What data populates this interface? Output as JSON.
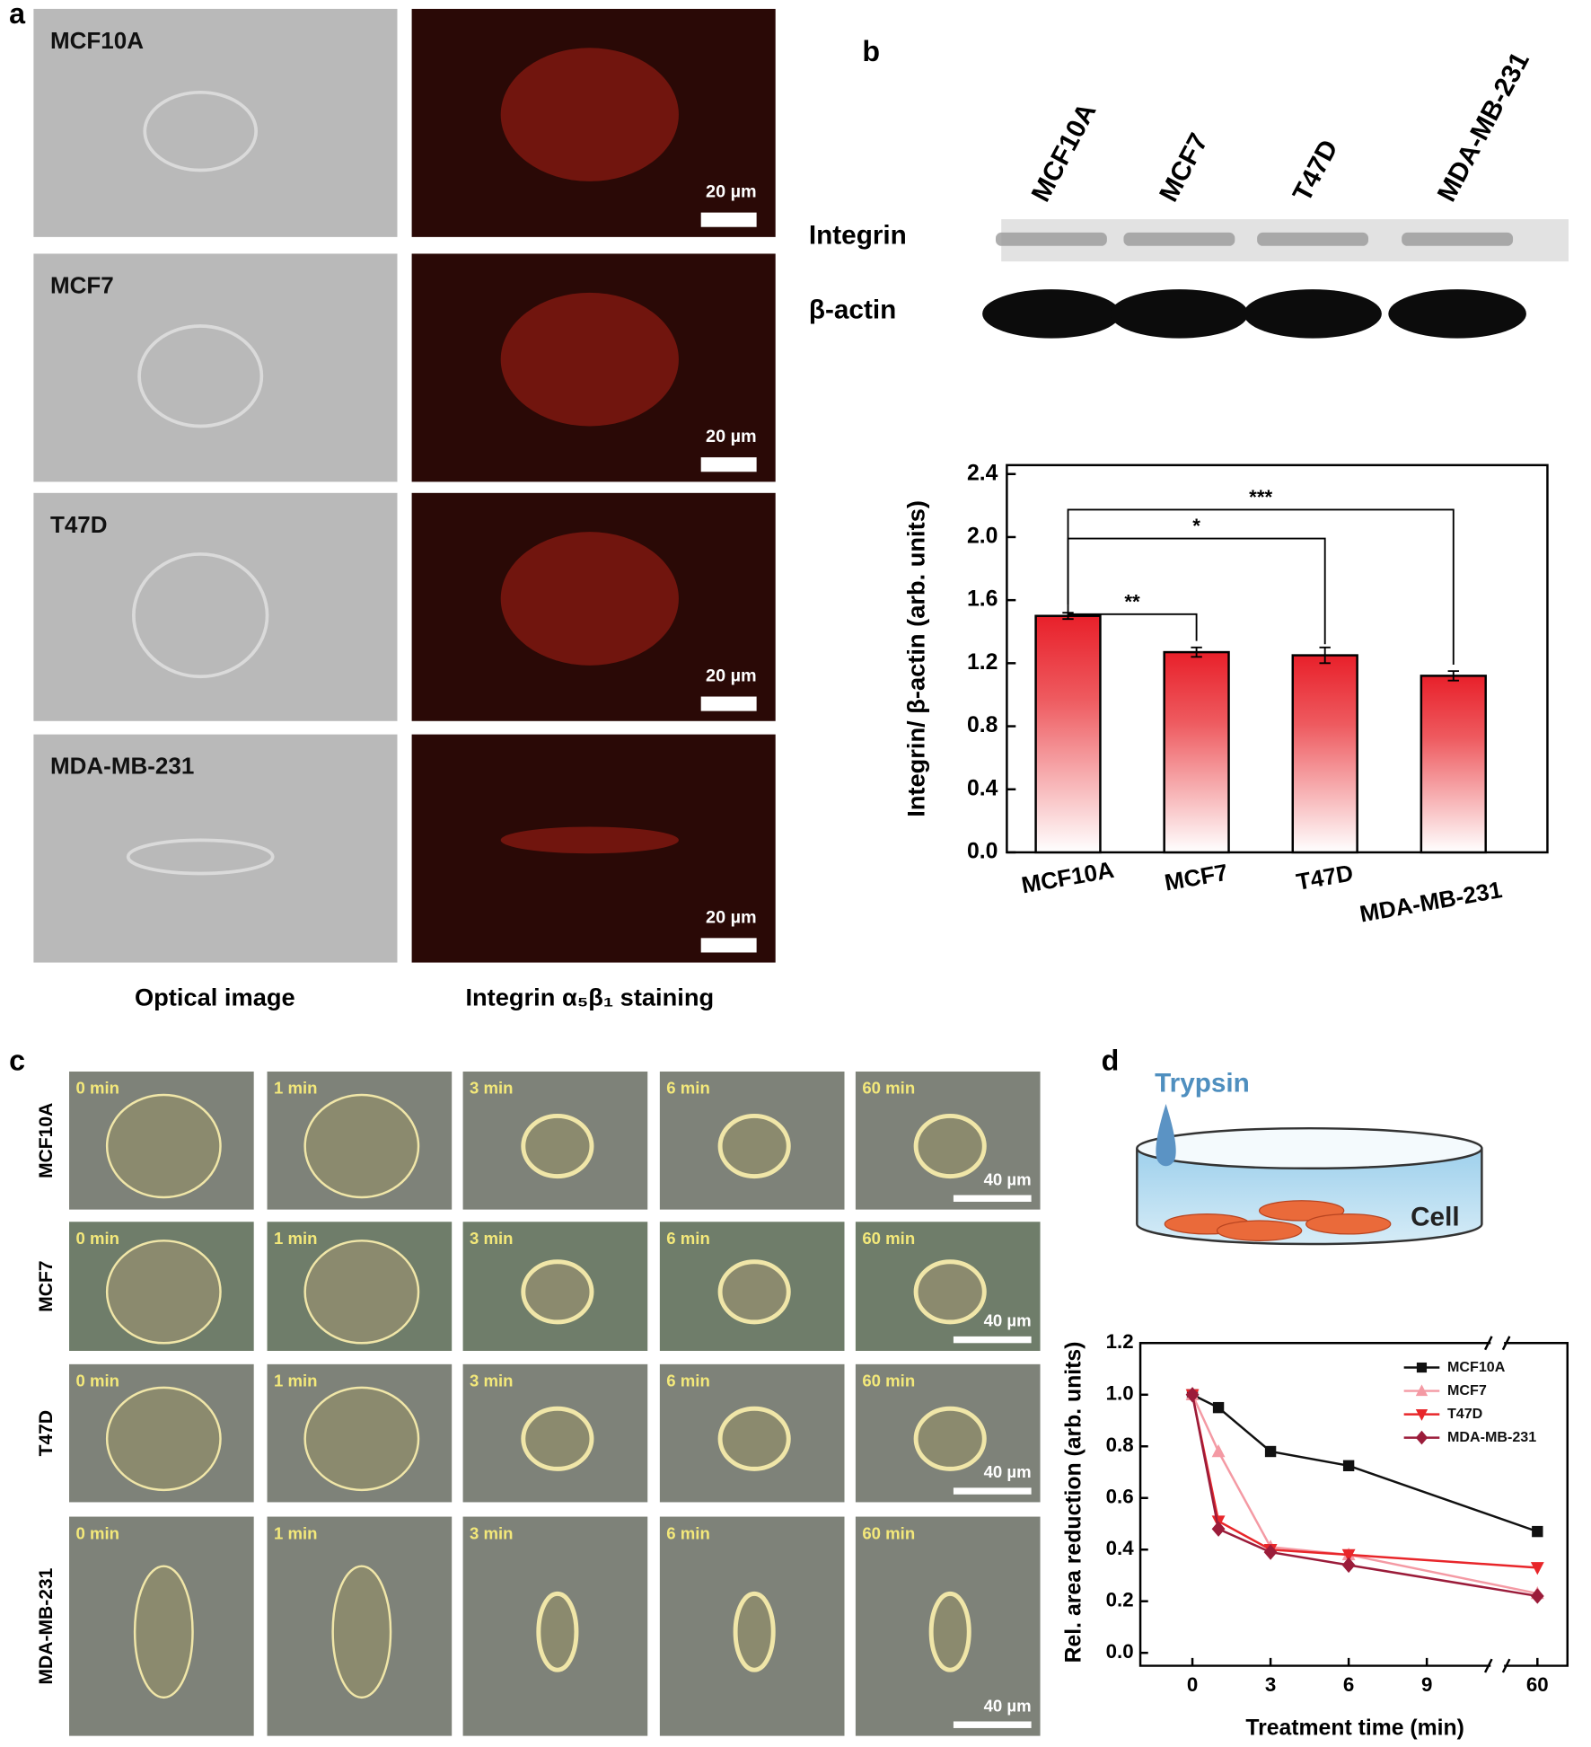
{
  "panel_a": {
    "label": "a",
    "rows": [
      "MCF10A",
      "MCF7",
      "T47D",
      "MDA-MB-231"
    ],
    "scale_bar": "20 µm",
    "columns": [
      "Optical image",
      "Integrin α₅β₁ staining"
    ]
  },
  "panel_b": {
    "label": "b",
    "lanes": [
      "MCF10A",
      "MCF7",
      "T47D",
      "MDA-MB-231"
    ],
    "blot_rows": [
      "Integrin",
      "β-actin"
    ],
    "chart": {
      "type": "bar",
      "y_label": "Integrin/ β-actin (arb. units)",
      "categories": [
        "MCF10A",
        "MCF7",
        "T47D",
        "MDA-MB-231"
      ],
      "values": [
        1.5,
        1.27,
        1.25,
        1.12
      ],
      "errors": [
        0.02,
        0.03,
        0.05,
        0.03
      ],
      "color": "#e8202a",
      "ylim": [
        0,
        2.4
      ],
      "yticks": [
        {
          "value": 0,
          "label": "0.0"
        },
        0.4,
        0.8,
        1.2,
        1.6,
        {
          "value": 2,
          "label": "2.0"
        },
        2.4
      ],
      "significance": [
        "**",
        "*",
        "***"
      ]
    }
  },
  "panel_c": {
    "label": "c",
    "rows": [
      "MCF10A",
      "MCF7",
      "T47D",
      "MDA-MB-231"
    ],
    "times": [
      "0 min",
      "1 min",
      "3 min",
      "6 min",
      "60 min"
    ],
    "scale_bar": "40 µm"
  },
  "panel_d": {
    "label": "d",
    "illustration": {
      "reagent": "Trypsin",
      "cell": "Cell"
    },
    "chart": {
      "type": "line",
      "x_label": "Treatment time (min)",
      "y_label": "Rel. area reduction (arb. units)",
      "x": [
        0,
        1,
        3,
        6,
        60
      ],
      "xlim": [
        -2,
        62
      ],
      "xbreak": [
        10,
        58
      ],
      "xticks": [
        0,
        3,
        6,
        9,
        60
      ],
      "ylim": [
        -0.05,
        1.2
      ],
      "yticks": [
        {
          "value": 0,
          "label": "0.0"
        },
        0.2,
        0.4,
        0.6,
        0.8,
        {
          "value": 1,
          "label": "1.0"
        },
        1.2
      ],
      "legend": "upper right",
      "series": [
        {
          "name": "MCF10A",
          "color": "#111111",
          "marker": "square",
          "values": [
            1.0,
            0.95,
            0.78,
            0.725,
            0.47
          ]
        },
        {
          "name": "MCF7",
          "color": "#f49aa4",
          "marker": "triangle-up",
          "values": [
            1.0,
            0.78,
            0.41,
            0.38,
            0.23
          ]
        },
        {
          "name": "T47D",
          "color": "#e8262a",
          "marker": "triangle-down",
          "values": [
            1.0,
            0.51,
            0.4,
            0.38,
            0.33
          ]
        },
        {
          "name": "MDA-MB-231",
          "color": "#9b1c3a",
          "marker": "diamond",
          "values": [
            1.0,
            0.48,
            0.39,
            0.34,
            0.22
          ]
        }
      ]
    }
  }
}
